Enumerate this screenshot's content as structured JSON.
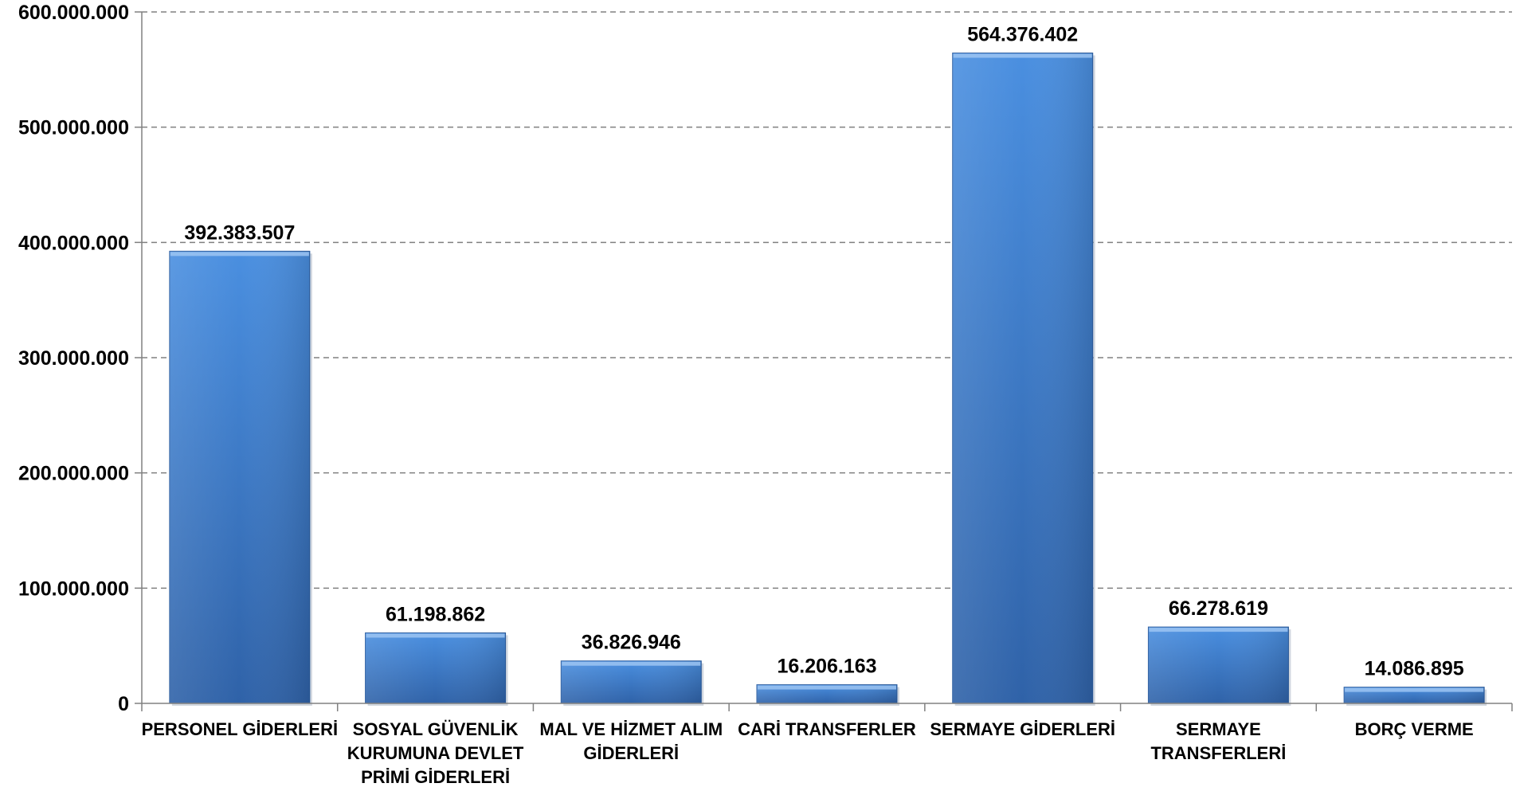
{
  "chart_data": {
    "type": "bar",
    "categories": [
      [
        "PERSONEL GİDERLERİ"
      ],
      [
        "SOSYAL GÜVENLİK",
        "KURUMUNA DEVLET",
        "PRİMİ GİDERLERİ"
      ],
      [
        "MAL VE HİZMET ALIM",
        "GİDERLERİ"
      ],
      [
        "CARİ TRANSFERLER"
      ],
      [
        "SERMAYE GİDERLERİ"
      ],
      [
        "SERMAYE",
        "TRANSFERLERİ"
      ],
      [
        "BORÇ VERME"
      ]
    ],
    "values": [
      392383507,
      61198862,
      36826946,
      16206163,
      564376402,
      66278619,
      14086895
    ],
    "value_labels": [
      "392.383.507",
      "61.198.862",
      "36.826.946",
      "16.206.163",
      "564.376.402",
      "66.278.619",
      "14.086.895"
    ],
    "ylim": [
      0,
      600000000
    ],
    "yticks": [
      0,
      100000000,
      200000000,
      300000000,
      400000000,
      500000000,
      600000000
    ],
    "ytick_labels": [
      "0",
      "100.000.000",
      "200.000.000",
      "300.000.000",
      "400.000.000",
      "500.000.000",
      "600.000.000"
    ],
    "grid": true,
    "title": "",
    "xlabel": "",
    "ylabel": "",
    "bar_color": "#3f7fd0"
  }
}
